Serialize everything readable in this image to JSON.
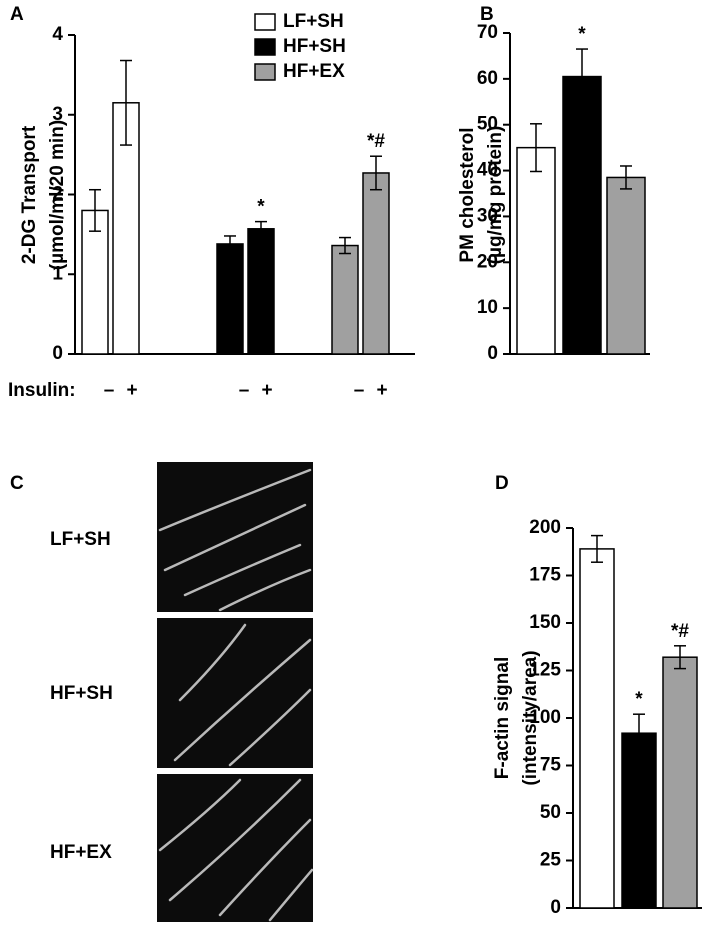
{
  "panel_c": {
    "panel": "C",
    "labels": [
      "LF+SH",
      "HF+SH",
      "HF+EX"
    ]
  },
  "chart_data": [
    {
      "type": "grouped-bar",
      "panel": "A",
      "ylabel": [
        "2-DG Transport",
        "(µmol/ml/20 min)"
      ],
      "xlabel": "Insulin:",
      "categories": [
        "–",
        "+"
      ],
      "series": [
        {
          "name": "LF+SH",
          "color": "#ffffff",
          "values": [
            1.8,
            3.15
          ],
          "errors": [
            0.26,
            0.53
          ]
        },
        {
          "name": "HF+SH",
          "color": "#000000",
          "values": [
            1.38,
            1.57
          ],
          "errors": [
            0.1,
            0.09
          ],
          "annotations": [
            null,
            "*"
          ]
        },
        {
          "name": "HF+EX",
          "color": "#a0a0a0",
          "values": [
            1.36,
            2.27
          ],
          "errors": [
            0.1,
            0.21
          ],
          "annotations": [
            null,
            "*#"
          ]
        }
      ],
      "ylim": [
        0,
        4
      ],
      "yticks": [
        0,
        1,
        2,
        3,
        4
      ],
      "legend": "top-right"
    },
    {
      "type": "bar",
      "panel": "B",
      "ylabel": [
        "PM cholesterol",
        "(µg/mg protein)"
      ],
      "values": [
        45,
        60.5,
        38.5
      ],
      "errors": [
        5.2,
        6,
        2.5
      ],
      "colors": [
        "#ffffff",
        "#000000",
        "#a0a0a0"
      ],
      "annotations": [
        null,
        "*",
        null
      ],
      "ylim": [
        0,
        70
      ],
      "yticks": [
        0,
        10,
        20,
        30,
        40,
        50,
        60,
        70
      ]
    },
    {
      "type": "bar",
      "panel": "D",
      "ylabel": [
        "F-actin signal",
        "(intensity/area)"
      ],
      "values": [
        189,
        92,
        132
      ],
      "errors": [
        7,
        10,
        6
      ],
      "colors": [
        "#ffffff",
        "#000000",
        "#a0a0a0"
      ],
      "annotations": [
        null,
        "*",
        "*#"
      ],
      "ylim": [
        0,
        200
      ],
      "yticks": [
        0,
        25,
        50,
        75,
        100,
        125,
        150,
        175,
        200
      ]
    }
  ]
}
